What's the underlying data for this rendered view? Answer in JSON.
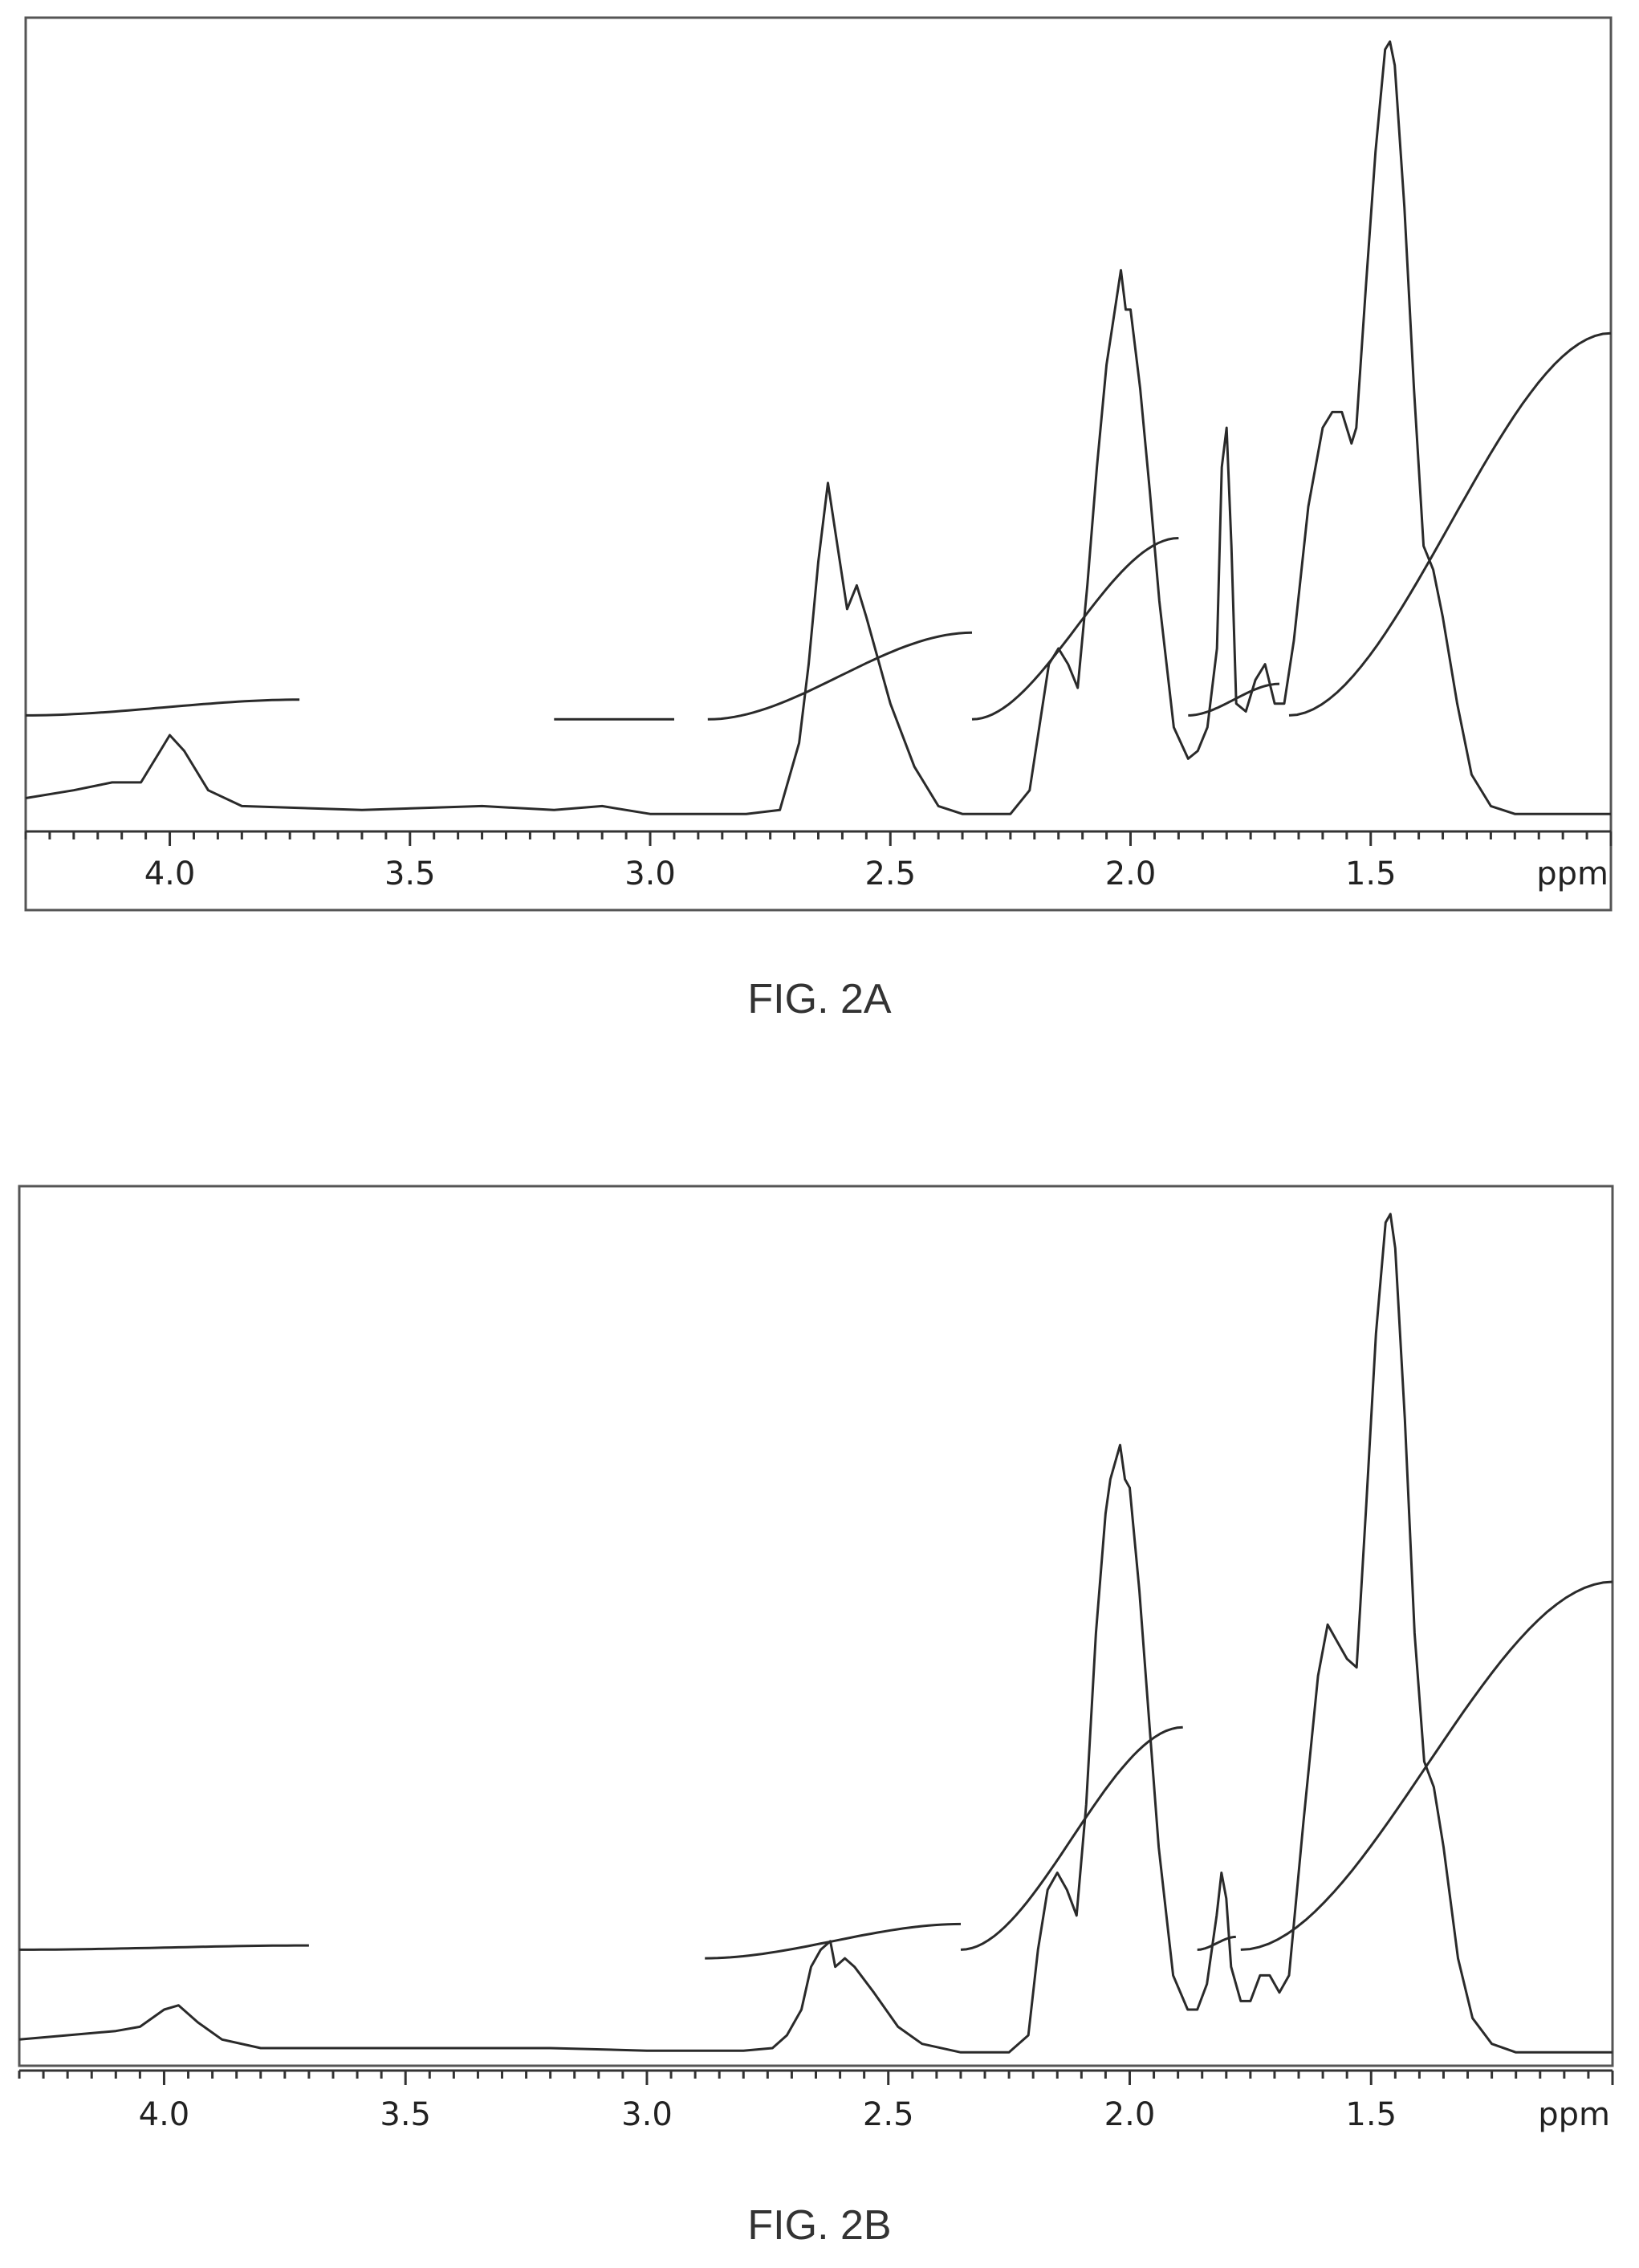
{
  "figures": [
    {
      "caption": "FIG. 2A",
      "chart_data": {
        "type": "line",
        "xlabel": "ppm",
        "ylabel": "",
        "xlim": [
          4.3,
          1.0
        ],
        "x_ticks": [
          "4.0",
          "3.5",
          "3.0",
          "2.5",
          "2.0",
          "1.5"
        ],
        "grid": false,
        "series": [
          {
            "points": [
              [
                4.3,
                0.03
              ],
              [
                4.2,
                0.04
              ],
              [
                4.12,
                0.05
              ],
              [
                4.06,
                0.05
              ],
              [
                4.02,
                0.09
              ],
              [
                4.0,
                0.11
              ],
              [
                3.97,
                0.09
              ],
              [
                3.92,
                0.04
              ],
              [
                3.85,
                0.02
              ],
              [
                3.6,
                0.015
              ],
              [
                3.35,
                0.02
              ],
              [
                3.2,
                0.015
              ],
              [
                3.1,
                0.02
              ],
              [
                3.0,
                0.01
              ],
              [
                2.8,
                0.01
              ],
              [
                2.73,
                0.015
              ],
              [
                2.69,
                0.1
              ],
              [
                2.67,
                0.2
              ],
              [
                2.65,
                0.33
              ],
              [
                2.63,
                0.43
              ],
              [
                2.61,
                0.35
              ],
              [
                2.59,
                0.27
              ],
              [
                2.57,
                0.3
              ],
              [
                2.55,
                0.26
              ],
              [
                2.5,
                0.15
              ],
              [
                2.45,
                0.07
              ],
              [
                2.4,
                0.02
              ],
              [
                2.35,
                0.01
              ],
              [
                2.25,
                0.01
              ],
              [
                2.21,
                0.04
              ],
              [
                2.19,
                0.12
              ],
              [
                2.17,
                0.2
              ],
              [
                2.15,
                0.22
              ],
              [
                2.13,
                0.2
              ],
              [
                2.11,
                0.17
              ],
              [
                2.09,
                0.3
              ],
              [
                2.07,
                0.45
              ],
              [
                2.05,
                0.58
              ],
              [
                2.04,
                0.62
              ],
              [
                2.02,
                0.7
              ],
              [
                2.01,
                0.65
              ],
              [
                2.0,
                0.65
              ],
              [
                1.98,
                0.55
              ],
              [
                1.96,
                0.42
              ],
              [
                1.94,
                0.28
              ],
              [
                1.91,
                0.12
              ],
              [
                1.88,
                0.08
              ],
              [
                1.86,
                0.09
              ],
              [
                1.84,
                0.12
              ],
              [
                1.82,
                0.22
              ],
              [
                1.81,
                0.45
              ],
              [
                1.8,
                0.5
              ],
              [
                1.79,
                0.35
              ],
              [
                1.78,
                0.15
              ],
              [
                1.76,
                0.14
              ],
              [
                1.74,
                0.18
              ],
              [
                1.72,
                0.2
              ],
              [
                1.7,
                0.15
              ],
              [
                1.68,
                0.15
              ],
              [
                1.66,
                0.23
              ],
              [
                1.63,
                0.4
              ],
              [
                1.6,
                0.5
              ],
              [
                1.58,
                0.52
              ],
              [
                1.56,
                0.52
              ],
              [
                1.54,
                0.48
              ],
              [
                1.53,
                0.5
              ],
              [
                1.51,
                0.68
              ],
              [
                1.49,
                0.85
              ],
              [
                1.47,
                0.98
              ],
              [
                1.46,
                0.99
              ],
              [
                1.45,
                0.96
              ],
              [
                1.43,
                0.78
              ],
              [
                1.41,
                0.55
              ],
              [
                1.39,
                0.35
              ],
              [
                1.37,
                0.32
              ],
              [
                1.35,
                0.26
              ],
              [
                1.32,
                0.15
              ],
              [
                1.29,
                0.06
              ],
              [
                1.25,
                0.02
              ],
              [
                1.2,
                0.01
              ],
              [
                1.1,
                0.01
              ],
              [
                1.0,
                0.01
              ]
            ]
          }
        ],
        "integration_curves": [
          {
            "x": [
              4.3,
              3.73
            ],
            "y": [
              0.135,
              0.155
            ]
          },
          {
            "x": [
              3.2,
              2.95
            ],
            "y": [
              0.13,
              0.13
            ]
          },
          {
            "x": [
              2.88,
              2.33
            ],
            "y": [
              0.13,
              0.24
            ]
          },
          {
            "x": [
              2.33,
              1.9
            ],
            "y": [
              0.13,
              0.36
            ]
          },
          {
            "x": [
              1.88,
              1.69
            ],
            "y": [
              0.135,
              0.175
            ]
          },
          {
            "x": [
              1.67,
              1.0
            ],
            "y": [
              0.135,
              0.62
            ]
          }
        ]
      }
    },
    {
      "caption": "FIG. 2B",
      "chart_data": {
        "type": "line",
        "xlabel": "ppm",
        "ylabel": "",
        "xlim": [
          4.3,
          1.0
        ],
        "x_ticks": [
          "4.0",
          "3.5",
          "3.0",
          "2.5",
          "2.0",
          "1.5"
        ],
        "grid": false,
        "series": [
          {
            "points": [
              [
                4.3,
                0.025
              ],
              [
                4.2,
                0.03
              ],
              [
                4.1,
                0.035
              ],
              [
                4.05,
                0.04
              ],
              [
                4.0,
                0.06
              ],
              [
                3.97,
                0.065
              ],
              [
                3.93,
                0.045
              ],
              [
                3.88,
                0.025
              ],
              [
                3.8,
                0.015
              ],
              [
                3.5,
                0.015
              ],
              [
                3.2,
                0.015
              ],
              [
                3.0,
                0.012
              ],
              [
                2.8,
                0.012
              ],
              [
                2.74,
                0.015
              ],
              [
                2.71,
                0.03
              ],
              [
                2.68,
                0.06
              ],
              [
                2.66,
                0.11
              ],
              [
                2.64,
                0.13
              ],
              [
                2.62,
                0.14
              ],
              [
                2.61,
                0.11
              ],
              [
                2.59,
                0.12
              ],
              [
                2.57,
                0.11
              ],
              [
                2.53,
                0.08
              ],
              [
                2.48,
                0.04
              ],
              [
                2.43,
                0.02
              ],
              [
                2.35,
                0.01
              ],
              [
                2.25,
                0.01
              ],
              [
                2.21,
                0.03
              ],
              [
                2.19,
                0.13
              ],
              [
                2.17,
                0.2
              ],
              [
                2.15,
                0.22
              ],
              [
                2.13,
                0.2
              ],
              [
                2.11,
                0.17
              ],
              [
                2.09,
                0.3
              ],
              [
                2.07,
                0.5
              ],
              [
                2.05,
                0.64
              ],
              [
                2.04,
                0.68
              ],
              [
                2.02,
                0.72
              ],
              [
                2.01,
                0.68
              ],
              [
                2.0,
                0.67
              ],
              [
                1.98,
                0.55
              ],
              [
                1.96,
                0.4
              ],
              [
                1.94,
                0.25
              ],
              [
                1.91,
                0.1
              ],
              [
                1.88,
                0.06
              ],
              [
                1.86,
                0.06
              ],
              [
                1.84,
                0.09
              ],
              [
                1.82,
                0.17
              ],
              [
                1.81,
                0.22
              ],
              [
                1.8,
                0.19
              ],
              [
                1.79,
                0.11
              ],
              [
                1.77,
                0.07
              ],
              [
                1.75,
                0.07
              ],
              [
                1.73,
                0.1
              ],
              [
                1.71,
                0.1
              ],
              [
                1.69,
                0.08
              ],
              [
                1.67,
                0.1
              ],
              [
                1.64,
                0.28
              ],
              [
                1.61,
                0.45
              ],
              [
                1.59,
                0.51
              ],
              [
                1.57,
                0.49
              ],
              [
                1.55,
                0.47
              ],
              [
                1.53,
                0.46
              ],
              [
                1.51,
                0.65
              ],
              [
                1.49,
                0.85
              ],
              [
                1.47,
                0.98
              ],
              [
                1.46,
                0.99
              ],
              [
                1.45,
                0.95
              ],
              [
                1.43,
                0.75
              ],
              [
                1.41,
                0.5
              ],
              [
                1.39,
                0.35
              ],
              [
                1.37,
                0.32
              ],
              [
                1.35,
                0.25
              ],
              [
                1.32,
                0.12
              ],
              [
                1.29,
                0.05
              ],
              [
                1.25,
                0.02
              ],
              [
                1.2,
                0.01
              ],
              [
                1.1,
                0.01
              ],
              [
                1.0,
                0.01
              ]
            ]
          }
        ],
        "integration_curves": [
          {
            "x": [
              4.3,
              3.7
            ],
            "y": [
              0.13,
              0.135
            ]
          },
          {
            "x": [
              2.88,
              2.35
            ],
            "y": [
              0.12,
              0.16
            ]
          },
          {
            "x": [
              2.35,
              1.89
            ],
            "y": [
              0.13,
              0.39
            ]
          },
          {
            "x": [
              1.86,
              1.78
            ],
            "y": [
              0.13,
              0.145
            ]
          },
          {
            "x": [
              1.77,
              1.0
            ],
            "y": [
              0.13,
              0.56
            ]
          }
        ]
      }
    }
  ]
}
